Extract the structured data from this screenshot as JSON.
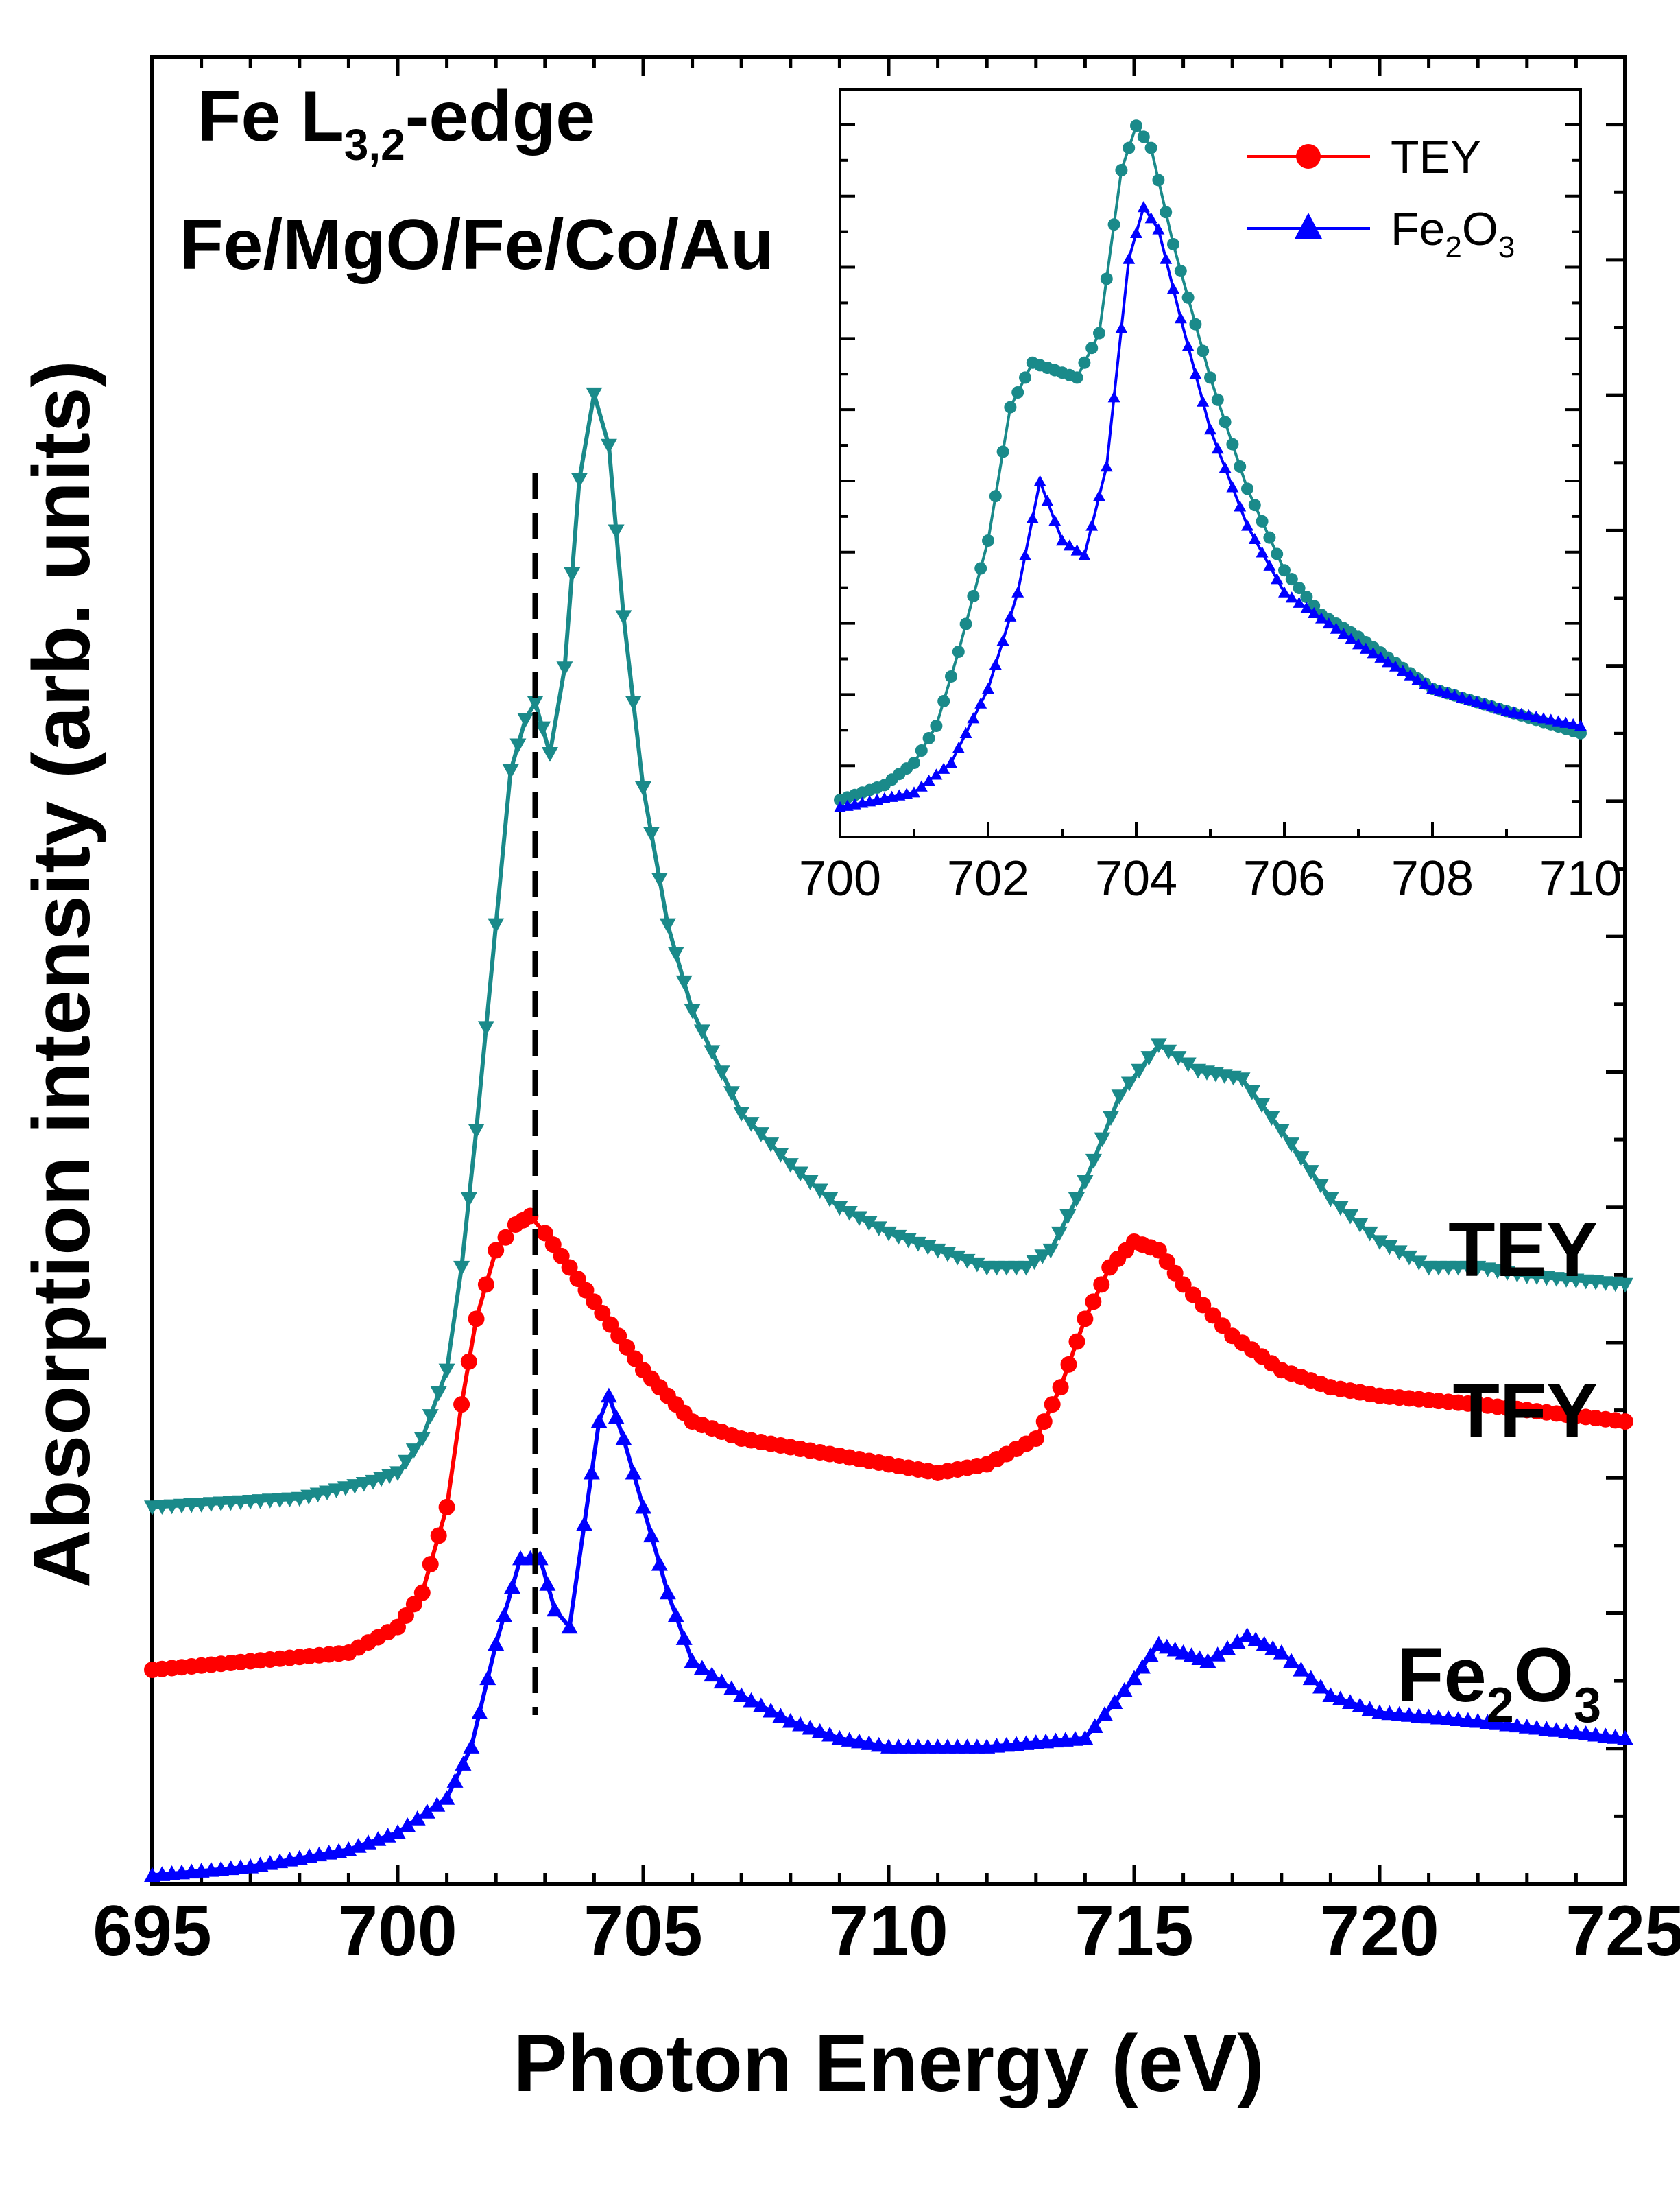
{
  "colors": {
    "tey": "#1a8a8a",
    "tfy": "#ff0000",
    "fe2o3": "#0000ff",
    "axis": "#000000",
    "marker_line": "#000000"
  },
  "chart_data": [
    {
      "type": "line",
      "xlabel": "Photon Energy (eV)",
      "ylabel": "Absorption intensity (arb. units)",
      "xlim": [
        695,
        725
      ],
      "ylim": [
        0,
        1
      ],
      "xticks": [
        "695",
        "700",
        "705",
        "710",
        "715",
        "720",
        "725"
      ],
      "annotation_lines": {
        "edge_prefix": "Fe L",
        "edge_sub": "3,2",
        "edge_suffix": "-edge",
        "sample": "Fe/MgO/Fe/Co/Au"
      },
      "series_labels": {
        "tey": "TEY",
        "tfy": "TFY",
        "fe2o3_base": "Fe",
        "fe2o3_sub1": "2",
        "fe2o3_mid": "O",
        "fe2o3_sub2": "3"
      },
      "dashed_marker_x": 702.8,
      "series": [
        {
          "name": "TEY",
          "marker": "triangle-down",
          "points": [
            [
              695,
              0.22
            ],
            [
              698,
              0.225
            ],
            [
              699.5,
              0.235
            ],
            [
              700,
              0.24
            ],
            [
              700.5,
              0.26
            ],
            [
              701,
              0.3
            ],
            [
              701.3,
              0.36
            ],
            [
              701.6,
              0.44
            ],
            [
              702,
              0.56
            ],
            [
              702.3,
              0.65
            ],
            [
              702.6,
              0.68
            ],
            [
              702.8,
              0.69
            ],
            [
              703.1,
              0.66
            ],
            [
              703.4,
              0.71
            ],
            [
              703.7,
              0.82
            ],
            [
              704,
              0.87
            ],
            [
              704.3,
              0.84
            ],
            [
              704.6,
              0.74
            ],
            [
              705,
              0.64
            ],
            [
              705.5,
              0.56
            ],
            [
              706,
              0.51
            ],
            [
              707,
              0.45
            ],
            [
              708,
              0.42
            ],
            [
              709,
              0.395
            ],
            [
              710,
              0.38
            ],
            [
              711,
              0.37
            ],
            [
              712,
              0.36
            ],
            [
              712.8,
              0.36
            ],
            [
              713.3,
              0.37
            ],
            [
              714,
              0.41
            ],
            [
              714.7,
              0.46
            ],
            [
              715.5,
              0.49
            ],
            [
              716.3,
              0.475
            ],
            [
              717.2,
              0.47
            ],
            [
              718,
              0.44
            ],
            [
              719,
              0.4
            ],
            [
              720,
              0.375
            ],
            [
              721,
              0.36
            ],
            [
              722,
              0.36
            ],
            [
              723,
              0.355
            ],
            [
              725,
              0.35
            ]
          ]
        },
        {
          "name": "TFY",
          "marker": "circle",
          "points": [
            [
              695,
              0.125
            ],
            [
              697,
              0.13
            ],
            [
              699,
              0.135
            ],
            [
              700,
              0.15
            ],
            [
              700.5,
              0.17
            ],
            [
              701,
              0.22
            ],
            [
              701.3,
              0.28
            ],
            [
              701.6,
              0.33
            ],
            [
              702,
              0.37
            ],
            [
              702.4,
              0.385
            ],
            [
              702.7,
              0.39
            ],
            [
              703,
              0.38
            ],
            [
              703.5,
              0.36
            ],
            [
              704,
              0.34
            ],
            [
              704.5,
              0.32
            ],
            [
              705,
              0.3
            ],
            [
              705.5,
              0.285
            ],
            [
              706,
              0.27
            ],
            [
              707,
              0.26
            ],
            [
              708,
              0.255
            ],
            [
              709,
              0.25
            ],
            [
              710,
              0.245
            ],
            [
              711,
              0.24
            ],
            [
              712,
              0.245
            ],
            [
              713,
              0.26
            ],
            [
              713.5,
              0.29
            ],
            [
              714,
              0.33
            ],
            [
              714.5,
              0.36
            ],
            [
              715,
              0.375
            ],
            [
              715.5,
              0.37
            ],
            [
              716,
              0.35
            ],
            [
              717,
              0.32
            ],
            [
              718,
              0.3
            ],
            [
              719,
              0.29
            ],
            [
              720,
              0.285
            ],
            [
              722,
              0.28
            ],
            [
              725,
              0.27
            ]
          ]
        },
        {
          "name": "Fe2O3",
          "marker": "triangle-up",
          "points": [
            [
              695,
              0.005
            ],
            [
              697,
              0.01
            ],
            [
              699,
              0.02
            ],
            [
              700,
              0.03
            ],
            [
              701,
              0.05
            ],
            [
              701.5,
              0.08
            ],
            [
              702,
              0.14
            ],
            [
              702.5,
              0.19
            ],
            [
              702.9,
              0.19
            ],
            [
              703.2,
              0.16
            ],
            [
              703.5,
              0.15
            ],
            [
              703.8,
              0.21
            ],
            [
              704.1,
              0.27
            ],
            [
              704.3,
              0.285
            ],
            [
              704.6,
              0.26
            ],
            [
              705,
              0.22
            ],
            [
              705.5,
              0.17
            ],
            [
              706,
              0.13
            ],
            [
              707,
              0.11
            ],
            [
              708,
              0.095
            ],
            [
              709,
              0.085
            ],
            [
              710,
              0.08
            ],
            [
              712,
              0.08
            ],
            [
              714,
              0.085
            ],
            [
              715,
              0.12
            ],
            [
              715.5,
              0.14
            ],
            [
              716,
              0.135
            ],
            [
              716.5,
              0.13
            ],
            [
              717.3,
              0.145
            ],
            [
              718,
              0.135
            ],
            [
              719,
              0.11
            ],
            [
              720,
              0.1
            ],
            [
              722,
              0.095
            ],
            [
              725,
              0.085
            ]
          ]
        }
      ]
    },
    {
      "type": "line",
      "xlim": [
        700,
        710
      ],
      "ylim": [
        0,
        1
      ],
      "xticks": [
        "700",
        "702",
        "704",
        "706",
        "708",
        "710"
      ],
      "legend": {
        "tey": "TEY",
        "fe2o3_base": "Fe",
        "fe2o3_sub1": "2",
        "fe2o3_mid": "O",
        "fe2o3_sub2": "3"
      },
      "series": [
        {
          "name": "TEY",
          "marker": "circle",
          "points": [
            [
              700,
              0.05
            ],
            [
              700.6,
              0.07
            ],
            [
              701,
              0.1
            ],
            [
              701.3,
              0.15
            ],
            [
              701.6,
              0.25
            ],
            [
              702,
              0.4
            ],
            [
              702.3,
              0.58
            ],
            [
              702.6,
              0.64
            ],
            [
              702.9,
              0.63
            ],
            [
              703.2,
              0.62
            ],
            [
              703.5,
              0.68
            ],
            [
              703.8,
              0.9
            ],
            [
              704,
              0.96
            ],
            [
              704.2,
              0.93
            ],
            [
              704.5,
              0.8
            ],
            [
              705,
              0.62
            ],
            [
              705.5,
              0.47
            ],
            [
              706,
              0.36
            ],
            [
              706.5,
              0.3
            ],
            [
              707,
              0.27
            ],
            [
              708,
              0.2
            ],
            [
              709,
              0.17
            ],
            [
              710,
              0.14
            ]
          ]
        },
        {
          "name": "Fe2O3",
          "marker": "triangle-up",
          "points": [
            [
              700,
              0.04
            ],
            [
              701,
              0.06
            ],
            [
              701.5,
              0.1
            ],
            [
              702,
              0.2
            ],
            [
              702.4,
              0.33
            ],
            [
              702.7,
              0.48
            ],
            [
              703,
              0.4
            ],
            [
              703.3,
              0.38
            ],
            [
              703.6,
              0.5
            ],
            [
              703.9,
              0.78
            ],
            [
              704.1,
              0.85
            ],
            [
              704.3,
              0.82
            ],
            [
              704.6,
              0.7
            ],
            [
              705,
              0.55
            ],
            [
              705.5,
              0.42
            ],
            [
              706,
              0.33
            ],
            [
              707,
              0.26
            ],
            [
              708,
              0.2
            ],
            [
              709,
              0.17
            ],
            [
              710,
              0.15
            ]
          ]
        }
      ]
    }
  ]
}
